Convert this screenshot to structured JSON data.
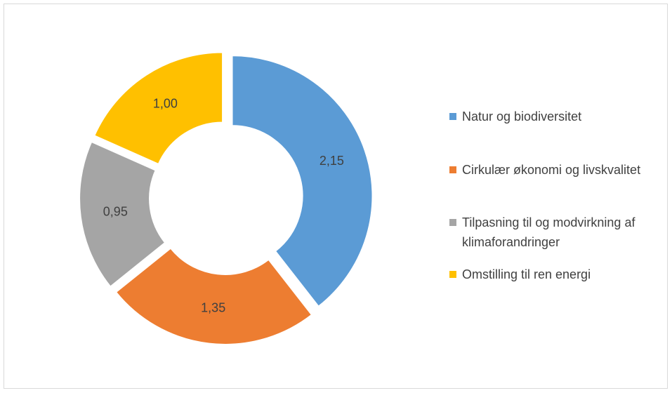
{
  "chart_data": {
    "type": "donut",
    "categories": [
      "Natur og biodiversitet",
      "Cirkulær økonomi og livskvalitet",
      "Tilpasning til og modvirkning af klimaforandringer",
      "Omstilling til ren energi"
    ],
    "values": [
      2.15,
      1.35,
      0.95,
      1.0
    ],
    "value_labels": [
      "2,15",
      "1,35",
      "0,95",
      "1,00"
    ],
    "colors": [
      "#5b9bd5",
      "#ed7d31",
      "#a5a5a5",
      "#ffc000"
    ],
    "legend": "right"
  }
}
